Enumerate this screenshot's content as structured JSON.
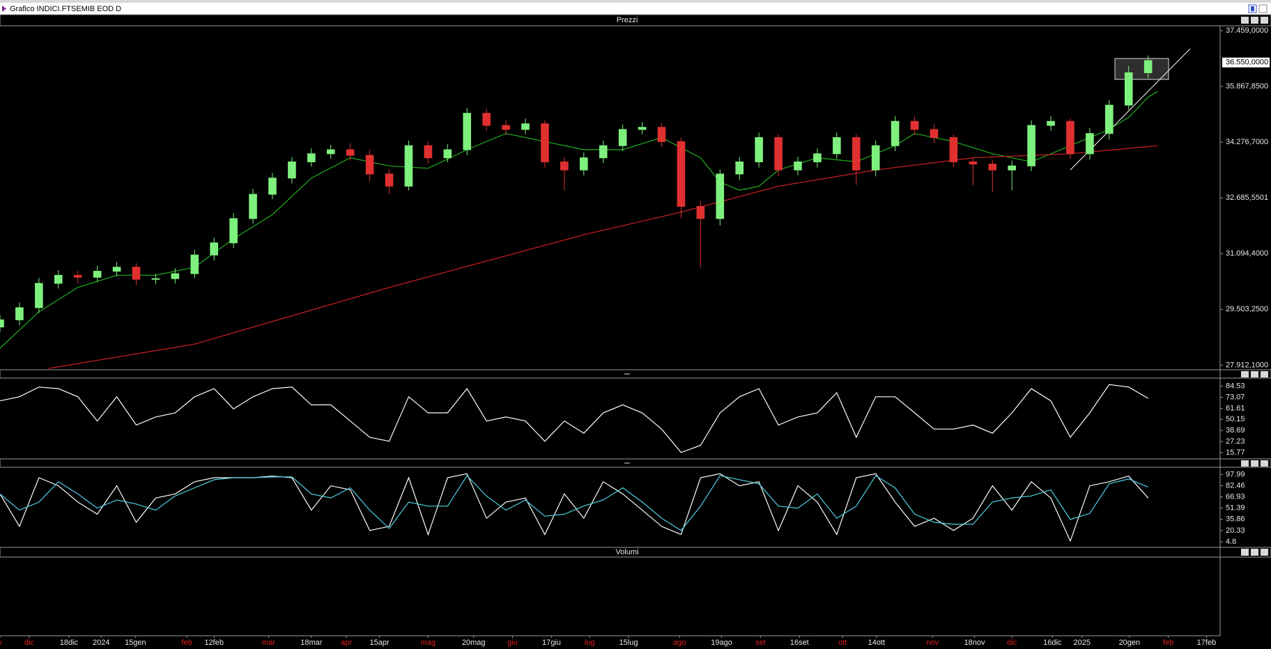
{
  "window": {
    "title": "Grafico INDICI.FTSEMIB EOD D"
  },
  "chart_data": [
    {
      "type": "candlestick",
      "title": "Prezzi",
      "xlim": [
        0,
        313.5
      ],
      "xticks": [
        {
          "value": 0,
          "label": "v",
          "color": "#e02020"
        },
        {
          "value": 7.5,
          "label": "dic",
          "color": "#e02020"
        },
        {
          "value": 17.7,
          "label": "18dic",
          "color": "#e8e8e8"
        },
        {
          "value": 26,
          "label": "2024",
          "color": "#e8e8e8"
        },
        {
          "value": 34.8,
          "label": "15gen",
          "color": "#e8e8e8"
        },
        {
          "value": 48,
          "label": "feb",
          "color": "#e02020"
        },
        {
          "value": 55,
          "label": "12feb",
          "color": "#e8e8e8"
        },
        {
          "value": 69,
          "label": "mar",
          "color": "#e02020"
        },
        {
          "value": 80,
          "label": "18mar",
          "color": "#e8e8e8"
        },
        {
          "value": 89,
          "label": "apr",
          "color": "#e02020"
        },
        {
          "value": 97.5,
          "label": "15apr",
          "color": "#e8e8e8"
        },
        {
          "value": 110,
          "label": "mag",
          "color": "#e02020"
        },
        {
          "value": 121.7,
          "label": "20mag",
          "color": "#e8e8e8"
        },
        {
          "value": 131.7,
          "label": "giu",
          "color": "#e02020"
        },
        {
          "value": 141.7,
          "label": "17giu",
          "color": "#e8e8e8"
        },
        {
          "value": 151.5,
          "label": "lug",
          "color": "#e02020"
        },
        {
          "value": 161.5,
          "label": "15lug",
          "color": "#e8e8e8"
        },
        {
          "value": 174.6,
          "label": "ago",
          "color": "#e02020"
        },
        {
          "value": 185.4,
          "label": "19ago",
          "color": "#e8e8e8"
        },
        {
          "value": 195.4,
          "label": "set",
          "color": "#e02020"
        },
        {
          "value": 205.4,
          "label": "16set",
          "color": "#e8e8e8"
        },
        {
          "value": 216.5,
          "label": "ott",
          "color": "#e02020"
        },
        {
          "value": 225.2,
          "label": "14ott",
          "color": "#e8e8e8"
        },
        {
          "value": 239.6,
          "label": "nov",
          "color": "#e02020"
        },
        {
          "value": 250.4,
          "label": "18nov",
          "color": "#e8e8e8"
        },
        {
          "value": 260,
          "label": "dic",
          "color": "#e02020"
        },
        {
          "value": 270.4,
          "label": "16dic",
          "color": "#e8e8e8"
        },
        {
          "value": 278,
          "label": "2025",
          "color": "#e8e8e8"
        },
        {
          "value": 290.2,
          "label": "20gen",
          "color": "#e8e8e8"
        },
        {
          "value": 300.2,
          "label": "feb",
          "color": "#e02020"
        },
        {
          "value": 310,
          "label": "17feb",
          "color": "#e8e8e8"
        }
      ],
      "ylim": [
        27820,
        37598
      ],
      "yticks": [
        {
          "value": 37459,
          "label": "37.459,0000"
        },
        {
          "value": 35867.85,
          "label": "35.867,8500"
        },
        {
          "value": 34276.7,
          "label": "34.276,7000"
        },
        {
          "value": 32685.5501,
          "label": "32.685,5501"
        },
        {
          "value": 31094.4,
          "label": "31.094,4000"
        },
        {
          "value": 29503.25,
          "label": "29.503,2500"
        },
        {
          "value": 27912.1,
          "label": "27.912,1000"
        }
      ],
      "last_price": {
        "value": 36550,
        "label": "36.550,0000"
      },
      "up_color": "#7ef07e",
      "down_color": "#e03030",
      "x": [
        0,
        5,
        10,
        15,
        20,
        25,
        30,
        35,
        40,
        45,
        50,
        55,
        60,
        65,
        70,
        75,
        80,
        85,
        90,
        95,
        100,
        105,
        110,
        115,
        120,
        125,
        130,
        135,
        140,
        145,
        150,
        155,
        160,
        165,
        170,
        175,
        180,
        185,
        190,
        195,
        200,
        205,
        210,
        215,
        220,
        225,
        230,
        235,
        240,
        245,
        250,
        255,
        260,
        265,
        270,
        275,
        280,
        285,
        290,
        295
      ],
      "open": [
        29000,
        29205,
        29552,
        30246,
        30477,
        30420,
        30592,
        30708,
        30361,
        30380,
        30523,
        31055,
        31402,
        32095,
        32789,
        33251,
        33714,
        33945,
        34060,
        33900,
        33367,
        33020,
        34176,
        33829,
        34060,
        35101,
        34754,
        34638,
        34800,
        33714,
        33482,
        33829,
        34176,
        34638,
        34700,
        34291,
        32442,
        32095,
        33367,
        33714,
        34407,
        33482,
        33714,
        33945,
        34407,
        33482,
        34176,
        34870,
        34638,
        34407,
        33714,
        33650,
        33482,
        33598,
        34754,
        34870,
        33945,
        34523,
        35332,
        36257
      ],
      "high": [
        29350,
        29700,
        30400,
        30620,
        30600,
        30750,
        30850,
        30820,
        30520,
        30680,
        31200,
        31550,
        32250,
        32950,
        33400,
        33850,
        34100,
        34200,
        34250,
        34050,
        33500,
        34320,
        34300,
        34220,
        35250,
        35230,
        34900,
        34950,
        34900,
        33850,
        33980,
        34320,
        34780,
        34850,
        34820,
        34400,
        32600,
        33500,
        33850,
        34550,
        34500,
        33860,
        34100,
        34550,
        34500,
        34320,
        35020,
        35000,
        34780,
        34500,
        33850,
        33780,
        33750,
        34900,
        35020,
        34950,
        34680,
        35480,
        36450,
        36750
      ],
      "low": [
        28850,
        29050,
        29400,
        30100,
        30250,
        30280,
        30450,
        30200,
        30220,
        30240,
        30400,
        30900,
        31250,
        31950,
        32650,
        33100,
        33580,
        33800,
        33750,
        33150,
        32800,
        32900,
        33680,
        33700,
        33900,
        34600,
        34480,
        34500,
        33550,
        32900,
        33330,
        33680,
        34020,
        34500,
        34150,
        32100,
        30700,
        31900,
        33200,
        33550,
        33300,
        33330,
        33550,
        33800,
        33050,
        33300,
        34020,
        34480,
        34250,
        33550,
        33050,
        32850,
        32900,
        33450,
        34600,
        33800,
        33780,
        34350,
        35200,
        36100
      ],
      "close": [
        29205,
        29552,
        30246,
        30477,
        30420,
        30592,
        30708,
        30361,
        30380,
        30523,
        31055,
        31402,
        32095,
        32789,
        33251,
        33714,
        33945,
        34060,
        33900,
        33367,
        33020,
        34176,
        33829,
        34060,
        35101,
        34754,
        34638,
        34800,
        33714,
        33482,
        33829,
        34176,
        34638,
        34700,
        34291,
        32442,
        32095,
        33367,
        33714,
        34407,
        33482,
        33714,
        33945,
        34407,
        33482,
        34176,
        34870,
        34638,
        34407,
        33714,
        33650,
        33482,
        33598,
        34754,
        34870,
        33945,
        34523,
        35332,
        36257,
        36604
      ],
      "series": [
        {
          "color": "#20b020",
          "x": [
            0,
            10,
            20,
            30,
            40,
            50,
            60,
            70,
            80,
            90,
            100,
            110,
            120,
            130,
            140,
            150,
            160,
            170,
            180,
            185,
            190,
            195,
            200,
            210,
            220,
            230,
            235,
            245,
            255,
            265,
            275,
            285,
            290,
            295,
            297.5
          ],
          "values": [
            28396,
            29436,
            30130,
            30477,
            30477,
            30708,
            31517,
            32211,
            33251,
            33829,
            33598,
            33529,
            34060,
            34523,
            34292,
            34060,
            34060,
            34407,
            33829,
            33136,
            32904,
            33020,
            33482,
            33829,
            33714,
            34176,
            34523,
            34292,
            33945,
            33714,
            34176,
            34638,
            34985,
            35563,
            35725
          ]
        },
        {
          "color": "#d02020",
          "x": [
            12.5,
            50,
            100,
            150,
            175,
            200,
            225,
            250,
            275,
            297.5
          ],
          "values": [
            27818,
            28512,
            30130,
            31633,
            32280,
            33020,
            33482,
            33829,
            33945,
            34176
          ]
        }
      ]
    },
    {
      "type": "line",
      "xlim": [
        0,
        313.5
      ],
      "ylim": [
        10.7,
        92.9
      ],
      "yticks": [
        84.53,
        73.07,
        61.61,
        50.15,
        38.69,
        27.23,
        15.77
      ],
      "series": [
        {
          "color": "#ffffff",
          "x": [
            0,
            5,
            10,
            15,
            20,
            25,
            30,
            35,
            40,
            45,
            50,
            55,
            60,
            65,
            70,
            75,
            80,
            85,
            90,
            95,
            100,
            105,
            110,
            115,
            120,
            125,
            130,
            135,
            140,
            145,
            150,
            155,
            160,
            165,
            170,
            175,
            180,
            185,
            190,
            195,
            200,
            205,
            210,
            215,
            220,
            225,
            230,
            235,
            240,
            245,
            250,
            255,
            260,
            265,
            270,
            275,
            280,
            285,
            290,
            295
          ],
          "values": [
            69.4,
            73.6,
            83.7,
            82.0,
            73.6,
            48.5,
            73.6,
            44.3,
            52.7,
            56.9,
            73.6,
            82.0,
            61.0,
            73.6,
            82.0,
            83.7,
            65.2,
            65.2,
            48.5,
            31.7,
            27.5,
            73.6,
            56.9,
            56.9,
            82.0,
            48.5,
            52.7,
            48.5,
            27.5,
            48.5,
            35.9,
            56.9,
            65.2,
            56.9,
            40.1,
            15.9,
            23.3,
            56.9,
            73.6,
            82.0,
            44.3,
            52.7,
            56.9,
            77.8,
            31.7,
            73.6,
            73.6,
            56.9,
            40.1,
            40.1,
            44.3,
            35.9,
            56.9,
            82.0,
            69.4,
            31.7,
            56.9,
            86.2,
            83.7,
            72.0
          ]
        }
      ]
    },
    {
      "type": "line",
      "xlim": [
        0,
        313.5
      ],
      "ylim": [
        -1.9,
        107.0
      ],
      "yticks": [
        97.99,
        82.46,
        66.93,
        51.39,
        35.86,
        20.33,
        4.8
      ],
      "series": [
        {
          "color": "#ffffff",
          "x": [
            0,
            5,
            10,
            15,
            20,
            25,
            30,
            35,
            40,
            45,
            50,
            55,
            60,
            65,
            70,
            75,
            80,
            85,
            90,
            95,
            100,
            105,
            110,
            115,
            120,
            125,
            130,
            135,
            140,
            145,
            150,
            155,
            160,
            165,
            170,
            175,
            180,
            185,
            190,
            195,
            200,
            205,
            210,
            215,
            220,
            225,
            230,
            235,
            240,
            245,
            250,
            255,
            260,
            265,
            270,
            275,
            280,
            285,
            290,
            295
          ],
          "values": [
            71.1,
            26.1,
            93.5,
            82.3,
            59.8,
            43.0,
            82.3,
            31.8,
            65.4,
            71.1,
            87.9,
            93.5,
            93.5,
            93.5,
            95.7,
            93.5,
            48.6,
            82.3,
            76.7,
            20.5,
            26.1,
            93.5,
            14.9,
            93.5,
            99.0,
            37.4,
            59.8,
            65.4,
            14.9,
            71.1,
            37.4,
            87.9,
            71.1,
            48.6,
            26.1,
            14.9,
            93.5,
            99.0,
            82.3,
            87.9,
            20.5,
            82.3,
            59.8,
            14.9,
            93.5,
            99.0,
            59.8,
            26.1,
            37.4,
            20.5,
            37.4,
            82.3,
            48.6,
            87.9,
            65.4,
            5.9,
            82.3,
            87.9,
            95.7,
            65.4
          ]
        },
        {
          "color": "#4fd0e6",
          "x": [
            0,
            5,
            10,
            15,
            20,
            25,
            30,
            35,
            40,
            45,
            50,
            55,
            60,
            65,
            70,
            75,
            80,
            85,
            90,
            95,
            100,
            105,
            110,
            115,
            120,
            125,
            130,
            135,
            140,
            145,
            150,
            155,
            160,
            165,
            170,
            175,
            180,
            185,
            190,
            195,
            200,
            205,
            210,
            215,
            220,
            225,
            230,
            235,
            240,
            245,
            250,
            255,
            260,
            265,
            270,
            275,
            280,
            285,
            290,
            295
          ],
          "values": [
            71.1,
            48.6,
            59.8,
            87.9,
            71.1,
            51.4,
            62.7,
            57.1,
            48.6,
            68.3,
            79.5,
            90.7,
            93.5,
            93.5,
            94.6,
            94.6,
            71.1,
            65.5,
            79.5,
            48.6,
            23.3,
            59.8,
            54.2,
            54.2,
            96.3,
            68.2,
            48.6,
            62.6,
            40.2,
            43.0,
            54.3,
            62.7,
            79.5,
            59.9,
            37.4,
            20.5,
            54.2,
            96.3,
            90.7,
            85.1,
            54.2,
            51.4,
            71.1,
            37.4,
            54.2,
            96.3,
            79.4,
            43.0,
            31.8,
            29.0,
            29.0,
            59.9,
            65.5,
            68.3,
            76.7,
            35.7,
            44.1,
            85.1,
            91.8,
            80.6
          ]
        }
      ]
    },
    {
      "type": "bar",
      "title": "Volumi"
    }
  ]
}
